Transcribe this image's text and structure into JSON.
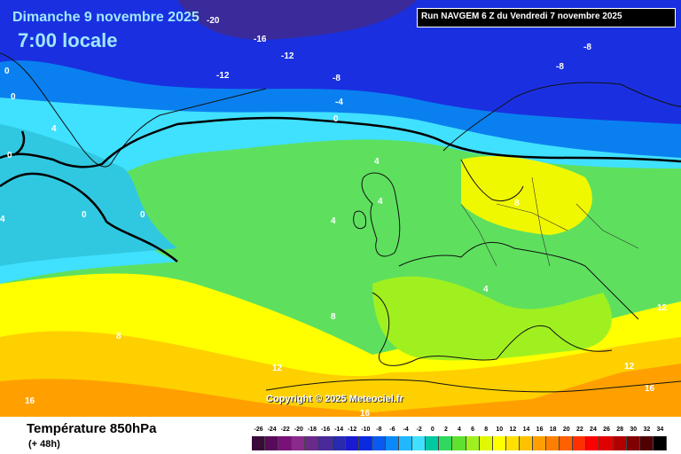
{
  "header": {
    "date": "Dimanche 9 novembre 2025",
    "time": "7:00 locale",
    "run": "Run NAVGEM 6 Z du Vendredi 7 novembre 2025"
  },
  "map": {
    "copyright": "Copyright © 2025 Meteociel.fr",
    "isotherm_labels": [
      "-20",
      "-16",
      "-12",
      "-12",
      "-8",
      "-8",
      "-8",
      "-4",
      "0",
      "0",
      "0",
      "0",
      "0",
      "4",
      "4",
      "4",
      "4",
      "8",
      "8",
      "8",
      "4",
      "12",
      "12",
      "12",
      "16",
      "16",
      "16",
      "0",
      "4"
    ]
  },
  "footer": {
    "title": "Température 850hPa",
    "subtitle": "(+ 48h)"
  },
  "legend": {
    "values": [
      "-26",
      "-24",
      "-22",
      "-20",
      "-18",
      "-16",
      "-14",
      "-12",
      "-10",
      "-8",
      "-6",
      "-4",
      "-2",
      "0",
      "2",
      "4",
      "6",
      "8",
      "10",
      "12",
      "14",
      "16",
      "18",
      "20",
      "22",
      "24",
      "26",
      "28",
      "30",
      "32",
      "34"
    ],
    "colors": [
      "#3a0a3a",
      "#5a0a5a",
      "#7a107a",
      "#8a2a8a",
      "#6a2a8a",
      "#4a2a9a",
      "#2a2ab0",
      "#1a1ad0",
      "#0a2ae0",
      "#0a5af0",
      "#0a8af8",
      "#20b8ff",
      "#40e0ff",
      "#00c8a0",
      "#30d860",
      "#60e030",
      "#a0f020",
      "#e0f800",
      "#ffff00",
      "#ffe000",
      "#ffc000",
      "#ffa000",
      "#ff8000",
      "#ff6000",
      "#ff3000",
      "#ff0000",
      "#e00000",
      "#b00000",
      "#800000",
      "#500000",
      "#000000"
    ]
  }
}
